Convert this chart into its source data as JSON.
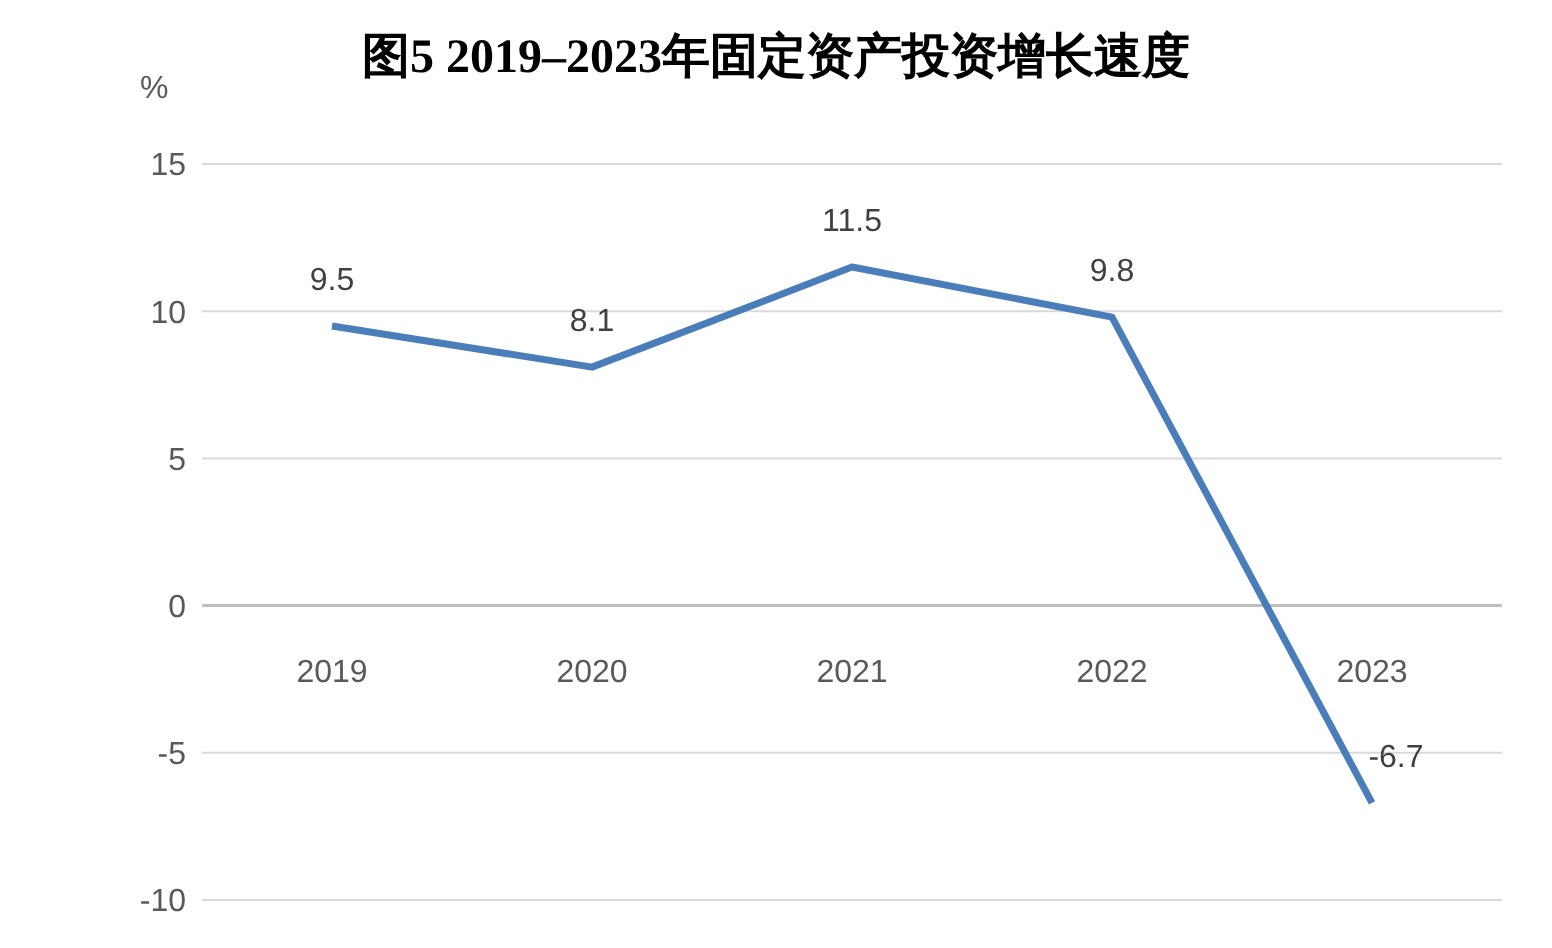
{
  "chart_data": {
    "type": "line",
    "title": "图5  2019–2023年固定资产投资增长速度",
    "ylabel": "%",
    "categories": [
      "2019",
      "2020",
      "2021",
      "2022",
      "2023"
    ],
    "series": [
      {
        "color": "#4a7ebb",
        "values": [
          9.5,
          8.1,
          11.5,
          9.8,
          -6.7
        ]
      }
    ],
    "ylim": [
      -10,
      15
    ],
    "yticks": [
      -10,
      -5,
      0,
      5,
      10,
      15
    ],
    "grid": "y",
    "data_labels": true,
    "legend": false,
    "marker": "none",
    "line_style": "solid"
  }
}
